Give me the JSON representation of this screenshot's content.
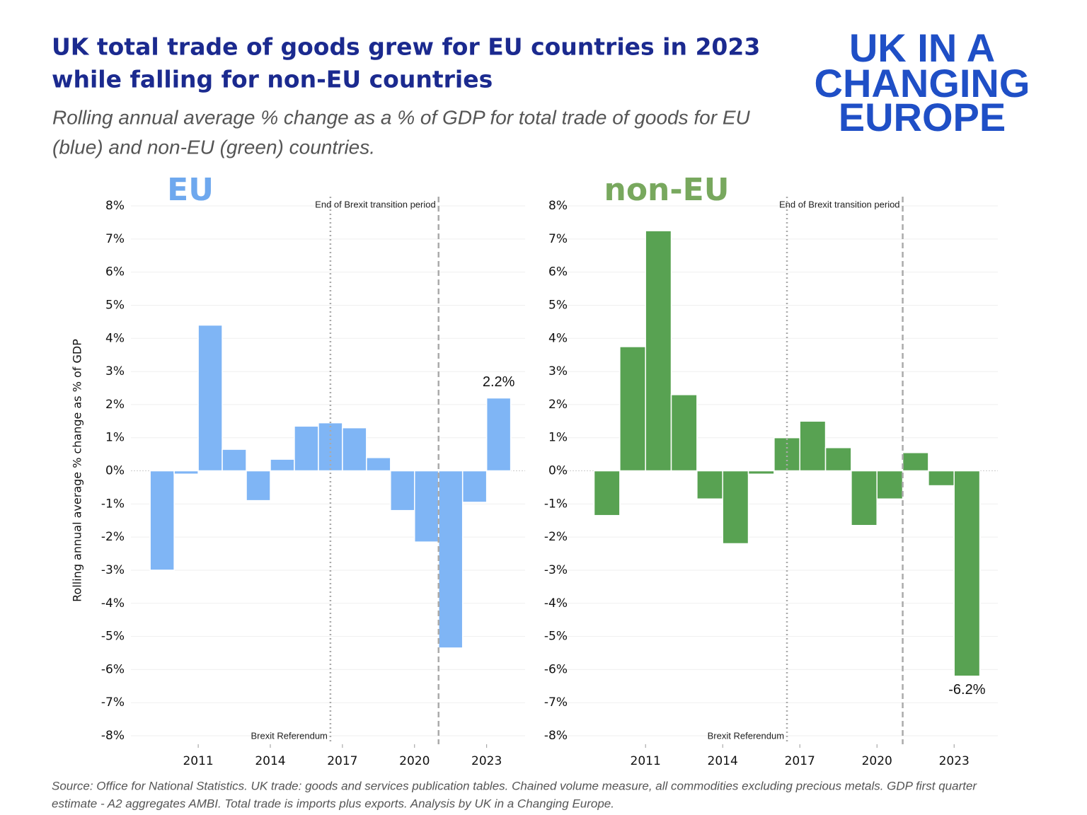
{
  "header": {
    "title_lines": [
      "UK total trade of goods grew for EU countries in 2023",
      "while falling for non-EU countries"
    ],
    "subtitle_lines": [
      "Rolling annual average % change as a % of GDP for total trade of goods for EU",
      "(blue) and non-EU (green) countries."
    ],
    "logo_lines": [
      "UK IN A",
      "CHANGING",
      "EUROPE"
    ]
  },
  "chart_data": [
    {
      "type": "bar",
      "title": "EU",
      "title_color": "#6ea8ee",
      "color": "#7fb5f5",
      "y_label": "Rolling annual average % change as % of GDP",
      "x": [
        2009,
        2010,
        2011,
        2012,
        2013,
        2014,
        2015,
        2016,
        2017,
        2018,
        2019,
        2020,
        2021,
        2022,
        2023
      ],
      "values": [
        -3.0,
        -0.1,
        4.4,
        0.65,
        -0.9,
        0.35,
        1.35,
        1.45,
        1.3,
        0.4,
        -1.2,
        -2.15,
        -5.35,
        -0.95,
        2.2
      ],
      "value_labels": [
        null,
        null,
        null,
        null,
        null,
        null,
        null,
        null,
        null,
        null,
        null,
        null,
        null,
        null,
        "2.2%"
      ],
      "xlim": [
        2008.2,
        2024.6
      ],
      "xticks": [
        2011,
        2014,
        2017,
        2020,
        2023
      ],
      "ylim": [
        -8,
        8
      ],
      "yticks": [
        {
          "value": -8,
          "label": "-8%"
        },
        {
          "value": -7,
          "label": "-7%"
        },
        {
          "value": -6,
          "label": "-6%"
        },
        {
          "value": -5,
          "label": "-5%"
        },
        {
          "value": -4,
          "label": "-4%"
        },
        {
          "value": -3,
          "label": "-3%"
        },
        {
          "value": -2,
          "label": "-2%"
        },
        {
          "value": -1,
          "label": "-1%"
        },
        {
          "value": 0,
          "label": "0%"
        },
        {
          "value": 1,
          "label": "1%"
        },
        {
          "value": 2,
          "label": "2%"
        },
        {
          "value": 3,
          "label": "3%"
        },
        {
          "value": 4,
          "label": "4%"
        },
        {
          "value": 5,
          "label": "5%"
        },
        {
          "value": 6,
          "label": "6%"
        },
        {
          "value": 7,
          "label": "7%"
        },
        {
          "value": 8,
          "label": "8%"
        }
      ],
      "grid": true,
      "vlines": [
        {
          "x": 2016.5,
          "label": "Brexit Referendum",
          "style": "dotted",
          "label_position": "bottom"
        },
        {
          "x": 2021,
          "label": "End of Brexit transition period",
          "style": "dashed",
          "label_position": "top"
        }
      ]
    },
    {
      "type": "bar",
      "title": "non-EU",
      "title_color": "#78a85e",
      "color": "#58a252",
      "x": [
        2009,
        2010,
        2011,
        2012,
        2013,
        2014,
        2015,
        2016,
        2017,
        2018,
        2019,
        2020,
        2021,
        2022,
        2023
      ],
      "values": [
        -1.35,
        3.75,
        7.25,
        2.3,
        -0.85,
        -2.2,
        -0.1,
        1.0,
        1.5,
        0.7,
        -1.65,
        -0.85,
        0.55,
        -0.45,
        -6.2
      ],
      "value_labels": [
        null,
        null,
        null,
        null,
        null,
        null,
        null,
        null,
        null,
        null,
        null,
        null,
        null,
        null,
        "-6.2%"
      ],
      "xlim": [
        2007.5,
        2024.7
      ],
      "xticks": [
        2011,
        2014,
        2017,
        2020,
        2023
      ],
      "ylim": [
        -8,
        8
      ],
      "yticks": [
        {
          "value": -8,
          "label": "-8%"
        },
        {
          "value": -7,
          "label": "-7%"
        },
        {
          "value": -6,
          "label": "-6%"
        },
        {
          "value": -5,
          "label": "-5%"
        },
        {
          "value": -4,
          "label": "-4%"
        },
        {
          "value": -3,
          "label": "-3%"
        },
        {
          "value": -2,
          "label": "-2%"
        },
        {
          "value": -1,
          "label": "-1%"
        },
        {
          "value": 0,
          "label": "0%"
        },
        {
          "value": 1,
          "label": "1%"
        },
        {
          "value": 2,
          "label": "2%"
        },
        {
          "value": 3,
          "label": "3%"
        },
        {
          "value": 4,
          "label": "4%"
        },
        {
          "value": 5,
          "label": "5%"
        },
        {
          "value": 6,
          "label": "6%"
        },
        {
          "value": 7,
          "label": "7%"
        },
        {
          "value": 8,
          "label": "8%"
        }
      ],
      "grid": true,
      "vlines": [
        {
          "x": 2016.5,
          "label": "Brexit Referendum",
          "style": "dotted",
          "label_position": "bottom"
        },
        {
          "x": 2021,
          "label": "End of Brexit transition period",
          "style": "dashed",
          "label_position": "top"
        }
      ]
    }
  ],
  "source_lines": [
    "Source: Office for National Statistics. UK trade: goods and services publication tables.  Chained volume measure, all commodities excluding precious metals. GDP first quarter",
    "estimate - A2 aggregates AMBI. Total trade is imports plus exports. Analysis by UK in a Changing Europe."
  ]
}
